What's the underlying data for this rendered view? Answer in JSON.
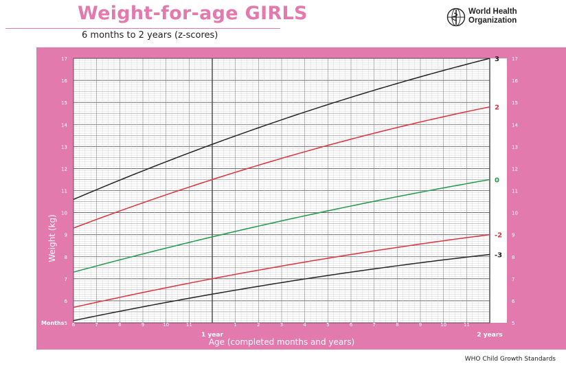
{
  "header": {
    "title": "Weight-for-age GIRLS",
    "subtitle": "6 months to 2 years (z-scores)",
    "org_line1": "World Health",
    "org_line2": "Organization"
  },
  "footer": {
    "source": "WHO Child Growth Standards"
  },
  "colors": {
    "pink": "#e27aae",
    "black_curve": "#222222",
    "red_curve": "#e0303c",
    "green_curve": "#1e9a4a",
    "grid": "#8a8a8a"
  },
  "chart_data": {
    "type": "line",
    "xlabel": "Age (completed months and years)",
    "ylabel": "Weight (kg)",
    "months_label": "Months",
    "xlim": [
      6,
      24
    ],
    "ylim": [
      5,
      17
    ],
    "x_tick_labels": [
      "6",
      "7",
      "8",
      "9",
      "10",
      "11",
      "1 year",
      "1",
      "2",
      "3",
      "4",
      "5",
      "6",
      "7",
      "8",
      "9",
      "10",
      "11",
      "2 years"
    ],
    "y_ticks": [
      5,
      6,
      7,
      8,
      9,
      10,
      11,
      12,
      13,
      14,
      15,
      16,
      17
    ],
    "x": [
      6,
      12,
      24
    ],
    "series": [
      {
        "name": "3",
        "color": "#222222",
        "label_color": "#222222",
        "values": [
          10.6,
          13.1,
          17.0
        ]
      },
      {
        "name": "2",
        "color": "#e0303c",
        "label_color": "#e0303c",
        "values": [
          9.3,
          11.5,
          14.8
        ]
      },
      {
        "name": "0",
        "color": "#1e9a4a",
        "label_color": "#1e9a4a",
        "values": [
          7.3,
          8.9,
          11.5
        ]
      },
      {
        "name": "-2",
        "color": "#e0303c",
        "label_color": "#e0303c",
        "values": [
          5.7,
          7.0,
          9.0
        ]
      },
      {
        "name": "-3",
        "color": "#222222",
        "label_color": "#222222",
        "values": [
          5.1,
          6.3,
          8.1
        ]
      }
    ]
  }
}
